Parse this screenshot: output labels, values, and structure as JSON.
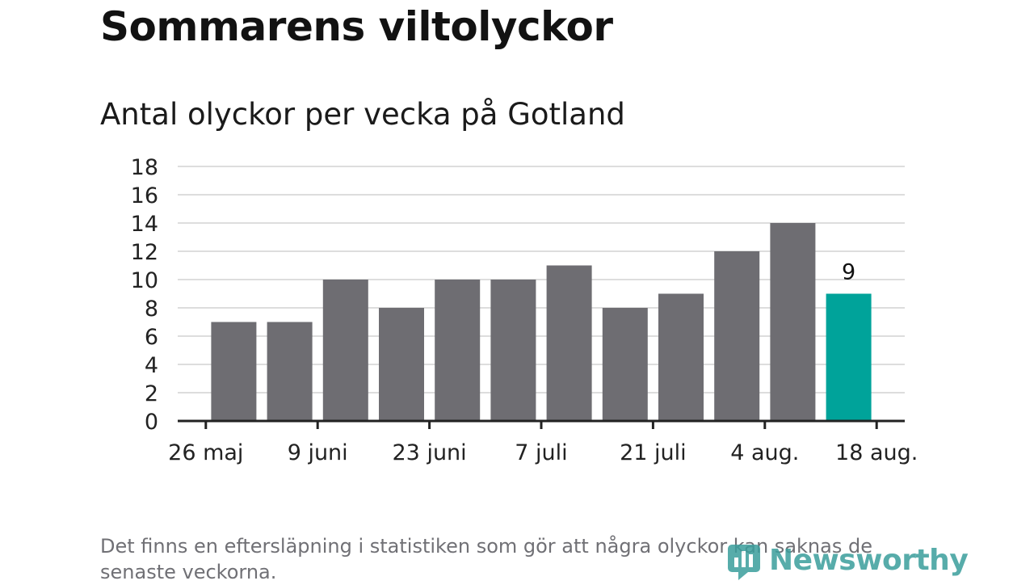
{
  "title": "Sommarens viltolyckor",
  "subtitle": "Antal olyckor per vecka på Gotland",
  "footnote": "Det finns en eftersläpning i statistiken som gör att några olyckor kan saknas de senaste veckorna.",
  "logo": {
    "text": "Newsworthy",
    "icon": "newsworthy-chart-icon",
    "color": "#3a9e9c"
  },
  "chart_data": {
    "type": "bar",
    "title": "Antal olyckor per vecka på Gotland",
    "xlabel": "",
    "ylabel": "",
    "ylim": [
      0,
      18
    ],
    "yticks": [
      "0",
      "2",
      "4",
      "6",
      "8",
      "10",
      "12",
      "14",
      "16",
      "18"
    ],
    "xticks": [
      "26 maj",
      "9 juni",
      "23 juni",
      "7 juli",
      "21 juli",
      "4 aug.",
      "18 aug."
    ],
    "grid": true,
    "values": [
      7,
      7,
      10,
      8,
      10,
      10,
      11,
      8,
      9,
      12,
      14,
      9
    ],
    "highlight_index": 11,
    "highlight_label": "9",
    "colors": {
      "bar": "#6e6d72",
      "highlight": "#00a39a",
      "grid": "#dddddd",
      "axis": "#222222"
    }
  }
}
